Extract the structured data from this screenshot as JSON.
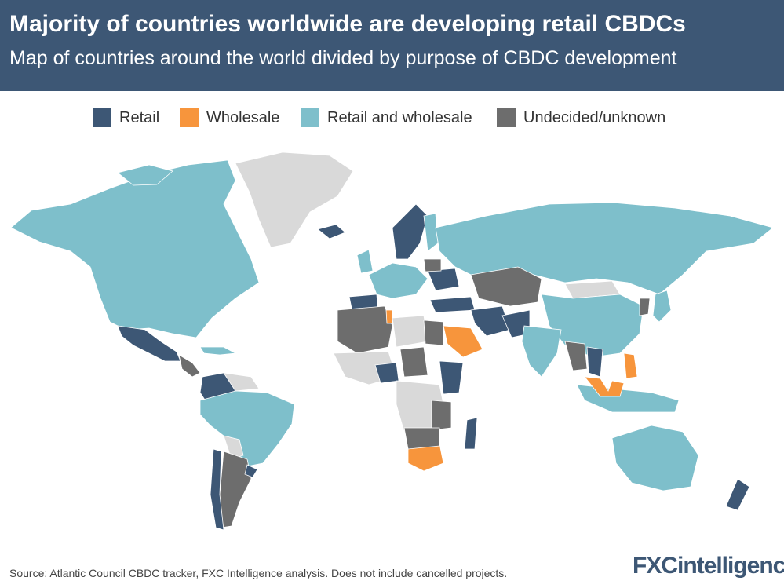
{
  "header": {
    "title": "Majority of countries worldwide are developing retail CBDCs",
    "subtitle": "Map of countries around the world divided by purpose of CBDC development"
  },
  "legend": [
    {
      "label": "Retail",
      "color": "#3d5775"
    },
    {
      "label": "Wholesale",
      "color": "#f7953c"
    },
    {
      "label": "Retail and wholesale",
      "color": "#7ebfcb"
    },
    {
      "label": "Undecided/unknown",
      "color": "#6d6d6d"
    }
  ],
  "colors": {
    "no_data": "#d9d9d9",
    "header_bg": "#3d5775"
  },
  "footer": {
    "source": "Source: Atlantic Council CBDC tracker, FXC Intelligence analysis. Does not include cancelled projects.",
    "brand_fxc": "FXC",
    "brand_rest": "intelligence"
  }
}
